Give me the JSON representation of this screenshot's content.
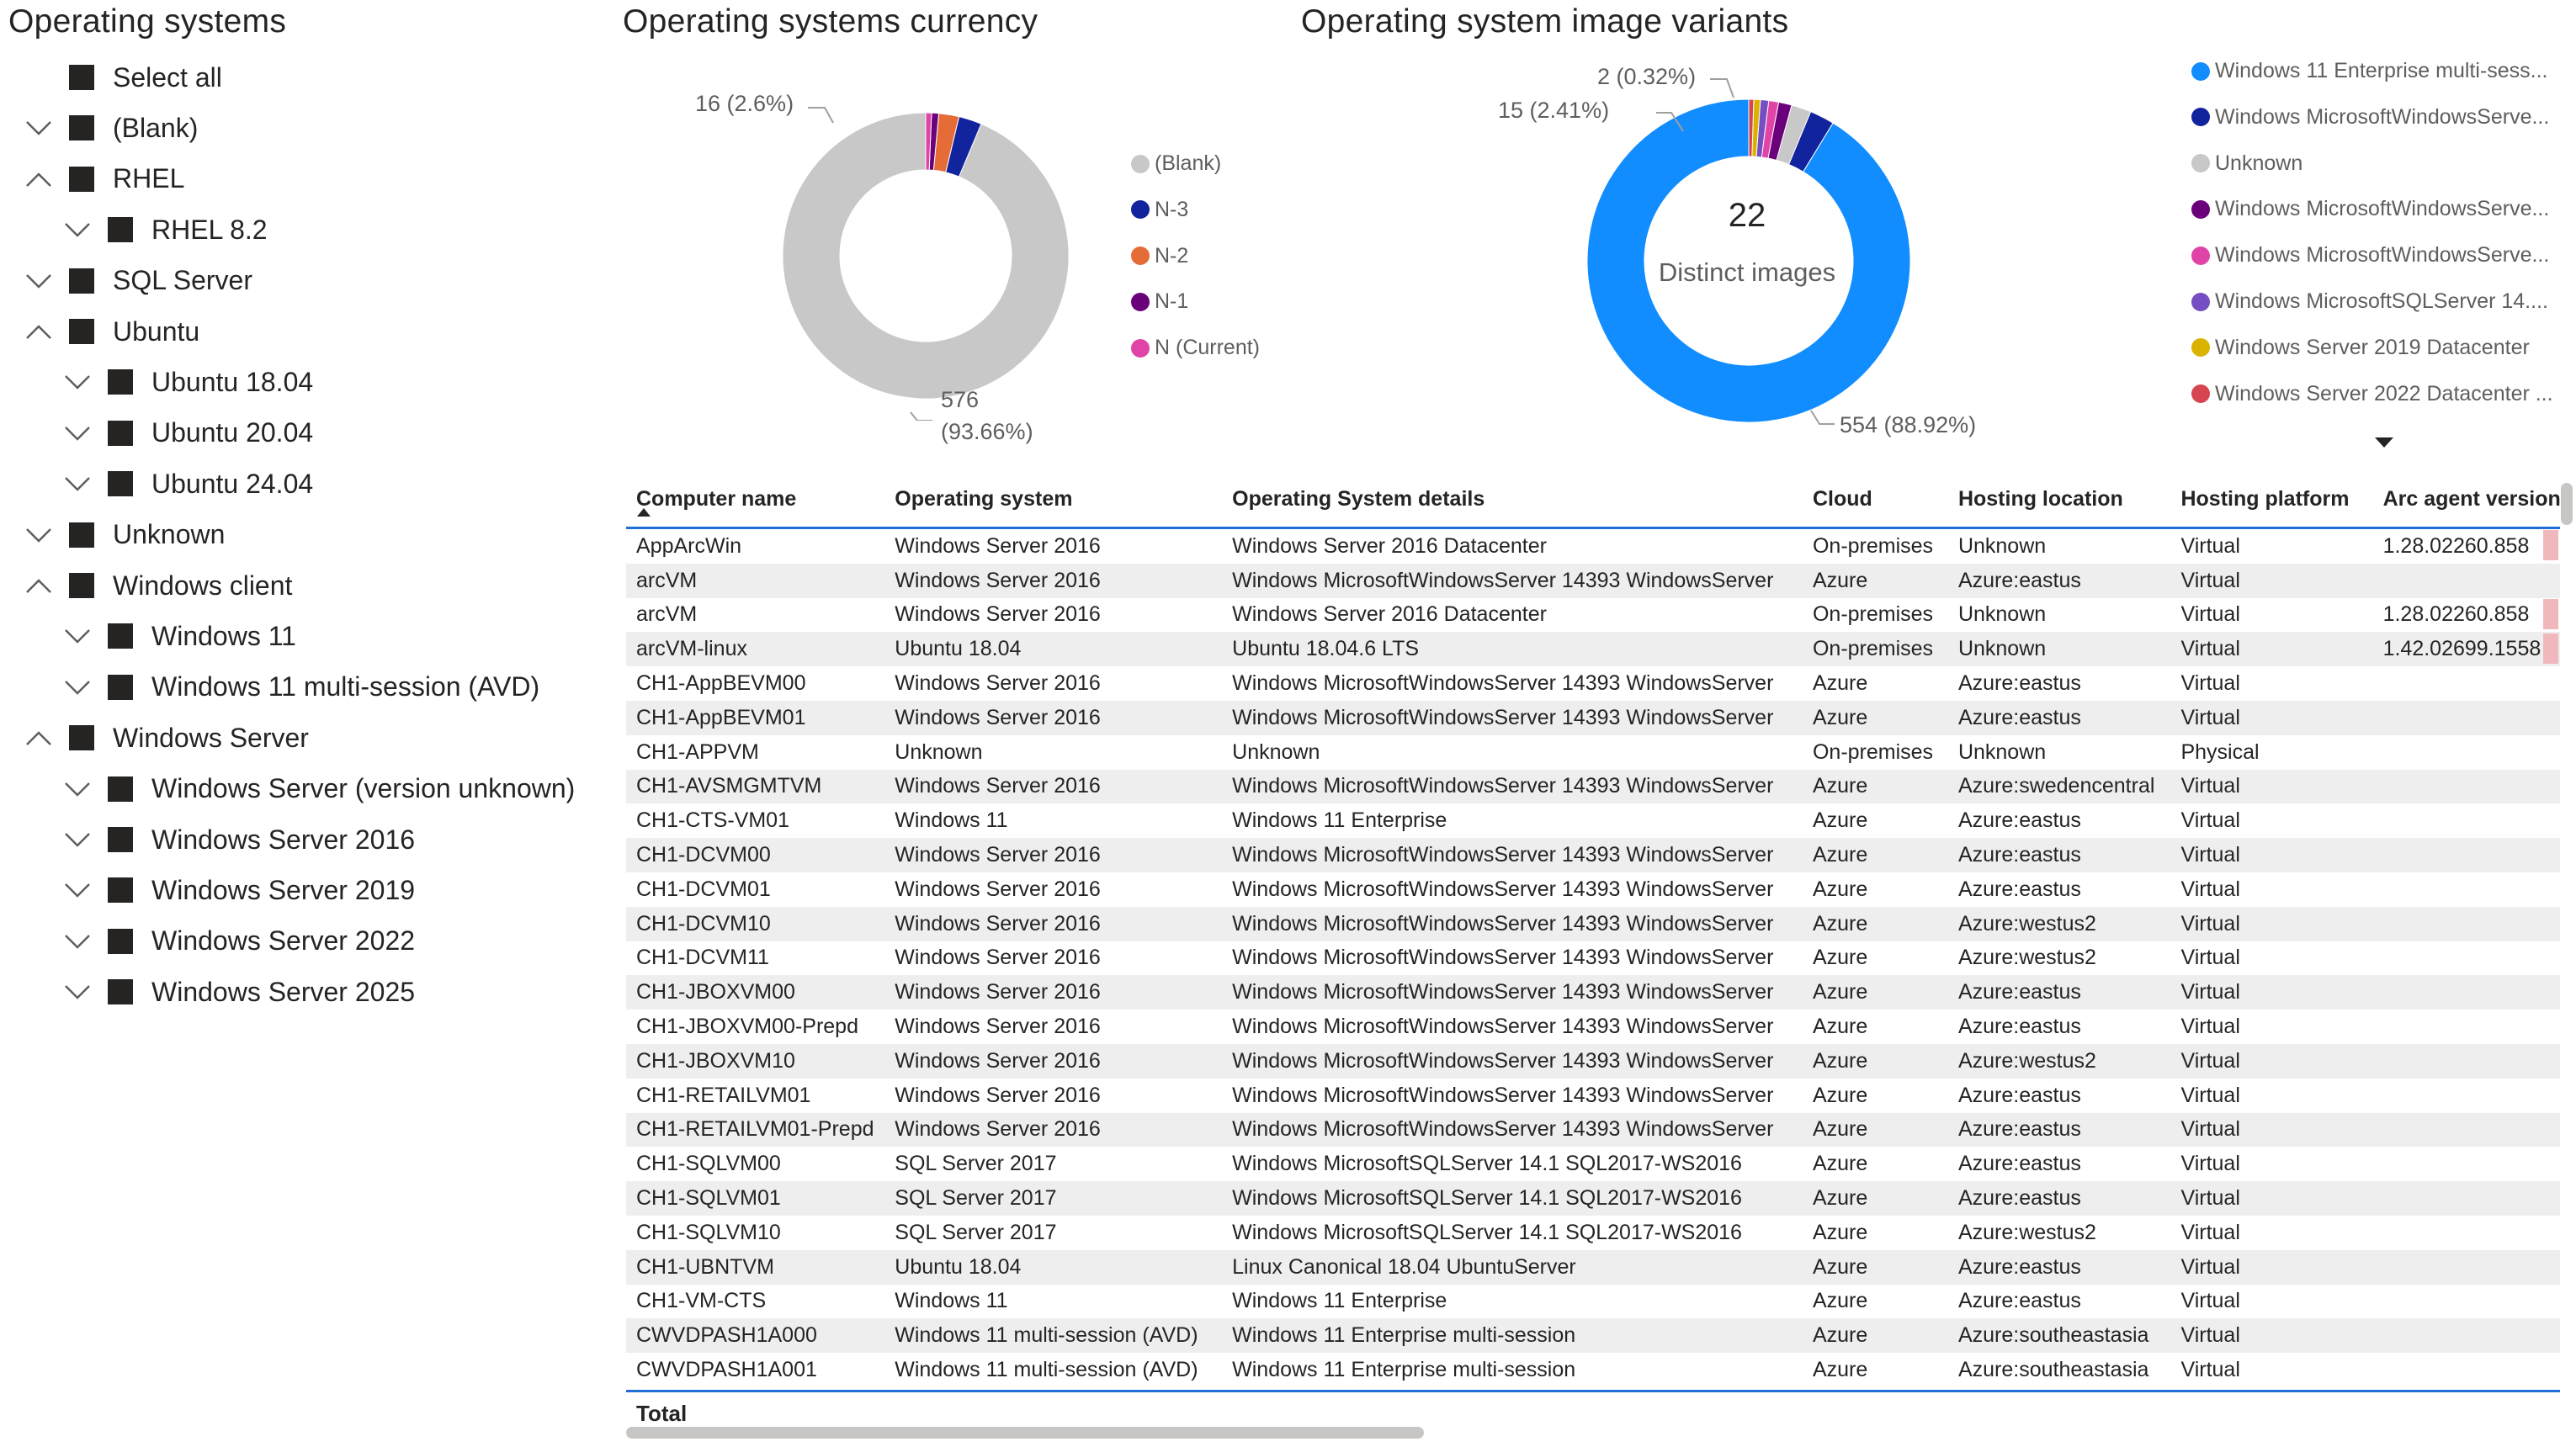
{
  "slicer": {
    "title": "Operating systems",
    "items": [
      {
        "label": "Select all",
        "chevron": "none",
        "indent": 0
      },
      {
        "label": "(Blank)",
        "chevron": "down",
        "indent": 0
      },
      {
        "label": "RHEL",
        "chevron": "up",
        "indent": 0
      },
      {
        "label": "RHEL 8.2",
        "chevron": "down",
        "indent": 1
      },
      {
        "label": "SQL Server",
        "chevron": "down",
        "indent": 0
      },
      {
        "label": "Ubuntu",
        "chevron": "up",
        "indent": 0
      },
      {
        "label": "Ubuntu 18.04",
        "chevron": "down",
        "indent": 1
      },
      {
        "label": "Ubuntu 20.04",
        "chevron": "down",
        "indent": 1
      },
      {
        "label": "Ubuntu 24.04",
        "chevron": "down",
        "indent": 1
      },
      {
        "label": "Unknown",
        "chevron": "down",
        "indent": 0
      },
      {
        "label": "Windows client",
        "chevron": "up",
        "indent": 0
      },
      {
        "label": "Windows 11",
        "chevron": "down",
        "indent": 1
      },
      {
        "label": "Windows 11 multi-session (AVD)",
        "chevron": "down",
        "indent": 1
      },
      {
        "label": "Windows Server",
        "chevron": "up",
        "indent": 0
      },
      {
        "label": "Windows Server (version unknown)",
        "chevron": "down",
        "indent": 1
      },
      {
        "label": "Windows Server 2016",
        "chevron": "down",
        "indent": 1
      },
      {
        "label": "Windows Server 2019",
        "chevron": "down",
        "indent": 1
      },
      {
        "label": "Windows Server 2022",
        "chevron": "down",
        "indent": 1
      },
      {
        "label": "Windows Server 2025",
        "chevron": "down",
        "indent": 1
      }
    ]
  },
  "currency": {
    "title": "Operating systems currency",
    "label_small": "16 (2.6%)",
    "label_big_1": "576",
    "label_big_2": "(93.66%)",
    "legend": [
      {
        "label": "(Blank)",
        "color": "#c8c8c8"
      },
      {
        "label": "N-3",
        "color": "#12239e"
      },
      {
        "label": "N-2",
        "color": "#e66c37"
      },
      {
        "label": "N-1",
        "color": "#6b007b"
      },
      {
        "label": "N (Current)",
        "color": "#e044a7"
      }
    ]
  },
  "variants": {
    "title": "Operating system image variants",
    "center_value": "22",
    "center_label": "Distinct images",
    "label_a": "2 (0.32%)",
    "label_b": "15 (2.41%)",
    "label_c": "554 (88.92%)",
    "legend": [
      {
        "label": "Windows 11 Enterprise multi-sess...",
        "color": "#118dff"
      },
      {
        "label": "Windows MicrosoftWindowsServe...",
        "color": "#12239e"
      },
      {
        "label": "Unknown",
        "color": "#c8c8c8"
      },
      {
        "label": "Windows MicrosoftWindowsServe...",
        "color": "#6b007b"
      },
      {
        "label": "Windows MicrosoftWindowsServe...",
        "color": "#e044a7"
      },
      {
        "label": "Windows MicrosoftSQLServer 14....",
        "color": "#744ec2"
      },
      {
        "label": "Windows Server 2019 Datacenter",
        "color": "#d9b300"
      },
      {
        "label": "Windows Server 2022 Datacenter ...",
        "color": "#d64550"
      }
    ]
  },
  "chart_data": [
    {
      "type": "pie",
      "title": "Operating systems currency",
      "categories": [
        "(Blank)",
        "N-3",
        "N-2",
        "N-1",
        "N (Current)"
      ],
      "values": [
        576,
        16,
        14,
        5,
        4
      ]
    },
    {
      "type": "pie",
      "title": "Operating system image variants",
      "categories": [
        "Windows 11 Enterprise multi-sess...",
        "Windows MicrosoftWindowsServe...",
        "Unknown",
        "Windows MicrosoftWindowsServe...",
        "Windows MicrosoftWindowsServe...",
        "Windows MicrosoftSQLServer 14....",
        "Windows Server 2019 Datacenter",
        "Windows Server 2022 Datacenter ..."
      ],
      "values": [
        554,
        15,
        12,
        8,
        6,
        5,
        4,
        3
      ]
    }
  ],
  "table": {
    "columns": [
      "Computer name",
      "Operating system",
      "Operating System details",
      "Cloud",
      "Hosting location",
      "Hosting platform",
      "Arc agent version"
    ],
    "rows": [
      [
        "AppArcWin",
        "Windows Server 2016",
        "Windows Server 2016 Datacenter",
        "On-premises",
        "Unknown",
        "Virtual",
        "1.28.02260.858"
      ],
      [
        "arcVM",
        "Windows Server 2016",
        "Windows MicrosoftWindowsServer 14393 WindowsServer",
        "Azure",
        "Azure:eastus",
        "Virtual",
        ""
      ],
      [
        "arcVM",
        "Windows Server 2016",
        "Windows Server 2016 Datacenter",
        "On-premises",
        "Unknown",
        "Virtual",
        "1.28.02260.858"
      ],
      [
        "arcVM-linux",
        "Ubuntu 18.04",
        "Ubuntu 18.04.6 LTS",
        "On-premises",
        "Unknown",
        "Virtual",
        "1.42.02699.1558"
      ],
      [
        "CH1-AppBEVM00",
        "Windows Server 2016",
        "Windows MicrosoftWindowsServer 14393 WindowsServer",
        "Azure",
        "Azure:eastus",
        "Virtual",
        ""
      ],
      [
        "CH1-AppBEVM01",
        "Windows Server 2016",
        "Windows MicrosoftWindowsServer 14393 WindowsServer",
        "Azure",
        "Azure:eastus",
        "Virtual",
        ""
      ],
      [
        "CH1-APPVM",
        "Unknown",
        "Unknown",
        "On-premises",
        "Unknown",
        "Physical",
        ""
      ],
      [
        "CH1-AVSMGMTVM",
        "Windows Server 2016",
        "Windows MicrosoftWindowsServer 14393 WindowsServer",
        "Azure",
        "Azure:swedencentral",
        "Virtual",
        ""
      ],
      [
        "CH1-CTS-VM01",
        "Windows 11",
        "Windows 11 Enterprise",
        "Azure",
        "Azure:eastus",
        "Virtual",
        ""
      ],
      [
        "CH1-DCVM00",
        "Windows Server 2016",
        "Windows MicrosoftWindowsServer 14393 WindowsServer",
        "Azure",
        "Azure:eastus",
        "Virtual",
        ""
      ],
      [
        "CH1-DCVM01",
        "Windows Server 2016",
        "Windows MicrosoftWindowsServer 14393 WindowsServer",
        "Azure",
        "Azure:eastus",
        "Virtual",
        ""
      ],
      [
        "CH1-DCVM10",
        "Windows Server 2016",
        "Windows MicrosoftWindowsServer 14393 WindowsServer",
        "Azure",
        "Azure:westus2",
        "Virtual",
        ""
      ],
      [
        "CH1-DCVM11",
        "Windows Server 2016",
        "Windows MicrosoftWindowsServer 14393 WindowsServer",
        "Azure",
        "Azure:westus2",
        "Virtual",
        ""
      ],
      [
        "CH1-JBOXVM00",
        "Windows Server 2016",
        "Windows MicrosoftWindowsServer 14393 WindowsServer",
        "Azure",
        "Azure:eastus",
        "Virtual",
        ""
      ],
      [
        "CH1-JBOXVM00-Prepd",
        "Windows Server 2016",
        "Windows MicrosoftWindowsServer 14393 WindowsServer",
        "Azure",
        "Azure:eastus",
        "Virtual",
        ""
      ],
      [
        "CH1-JBOXVM10",
        "Windows Server 2016",
        "Windows MicrosoftWindowsServer 14393 WindowsServer",
        "Azure",
        "Azure:westus2",
        "Virtual",
        ""
      ],
      [
        "CH1-RETAILVM01",
        "Windows Server 2016",
        "Windows MicrosoftWindowsServer 14393 WindowsServer",
        "Azure",
        "Azure:eastus",
        "Virtual",
        ""
      ],
      [
        "CH1-RETAILVM01-Prepd",
        "Windows Server 2016",
        "Windows MicrosoftWindowsServer 14393 WindowsServer",
        "Azure",
        "Azure:eastus",
        "Virtual",
        ""
      ],
      [
        "CH1-SQLVM00",
        "SQL Server 2017",
        "Windows MicrosoftSQLServer 14.1 SQL2017-WS2016",
        "Azure",
        "Azure:eastus",
        "Virtual",
        ""
      ],
      [
        "CH1-SQLVM01",
        "SQL Server 2017",
        "Windows MicrosoftSQLServer 14.1 SQL2017-WS2016",
        "Azure",
        "Azure:eastus",
        "Virtual",
        ""
      ],
      [
        "CH1-SQLVM10",
        "SQL Server 2017",
        "Windows MicrosoftSQLServer 14.1 SQL2017-WS2016",
        "Azure",
        "Azure:westus2",
        "Virtual",
        ""
      ],
      [
        "CH1-UBNTVM",
        "Ubuntu 18.04",
        "Linux Canonical 18.04 UbuntuServer",
        "Azure",
        "Azure:eastus",
        "Virtual",
        ""
      ],
      [
        "CH1-VM-CTS",
        "Windows 11",
        "Windows 11 Enterprise",
        "Azure",
        "Azure:eastus",
        "Virtual",
        ""
      ],
      [
        "CWVDPASH1A000",
        "Windows 11 multi-session (AVD)",
        "Windows 11 Enterprise multi-session",
        "Azure",
        "Azure:southeastasia",
        "Virtual",
        ""
      ],
      [
        "CWVDPASH1A001",
        "Windows 11 multi-session (AVD)",
        "Windows 11 Enterprise multi-session",
        "Azure",
        "Azure:southeastasia",
        "Virtual",
        ""
      ]
    ],
    "total_label": "Total"
  }
}
